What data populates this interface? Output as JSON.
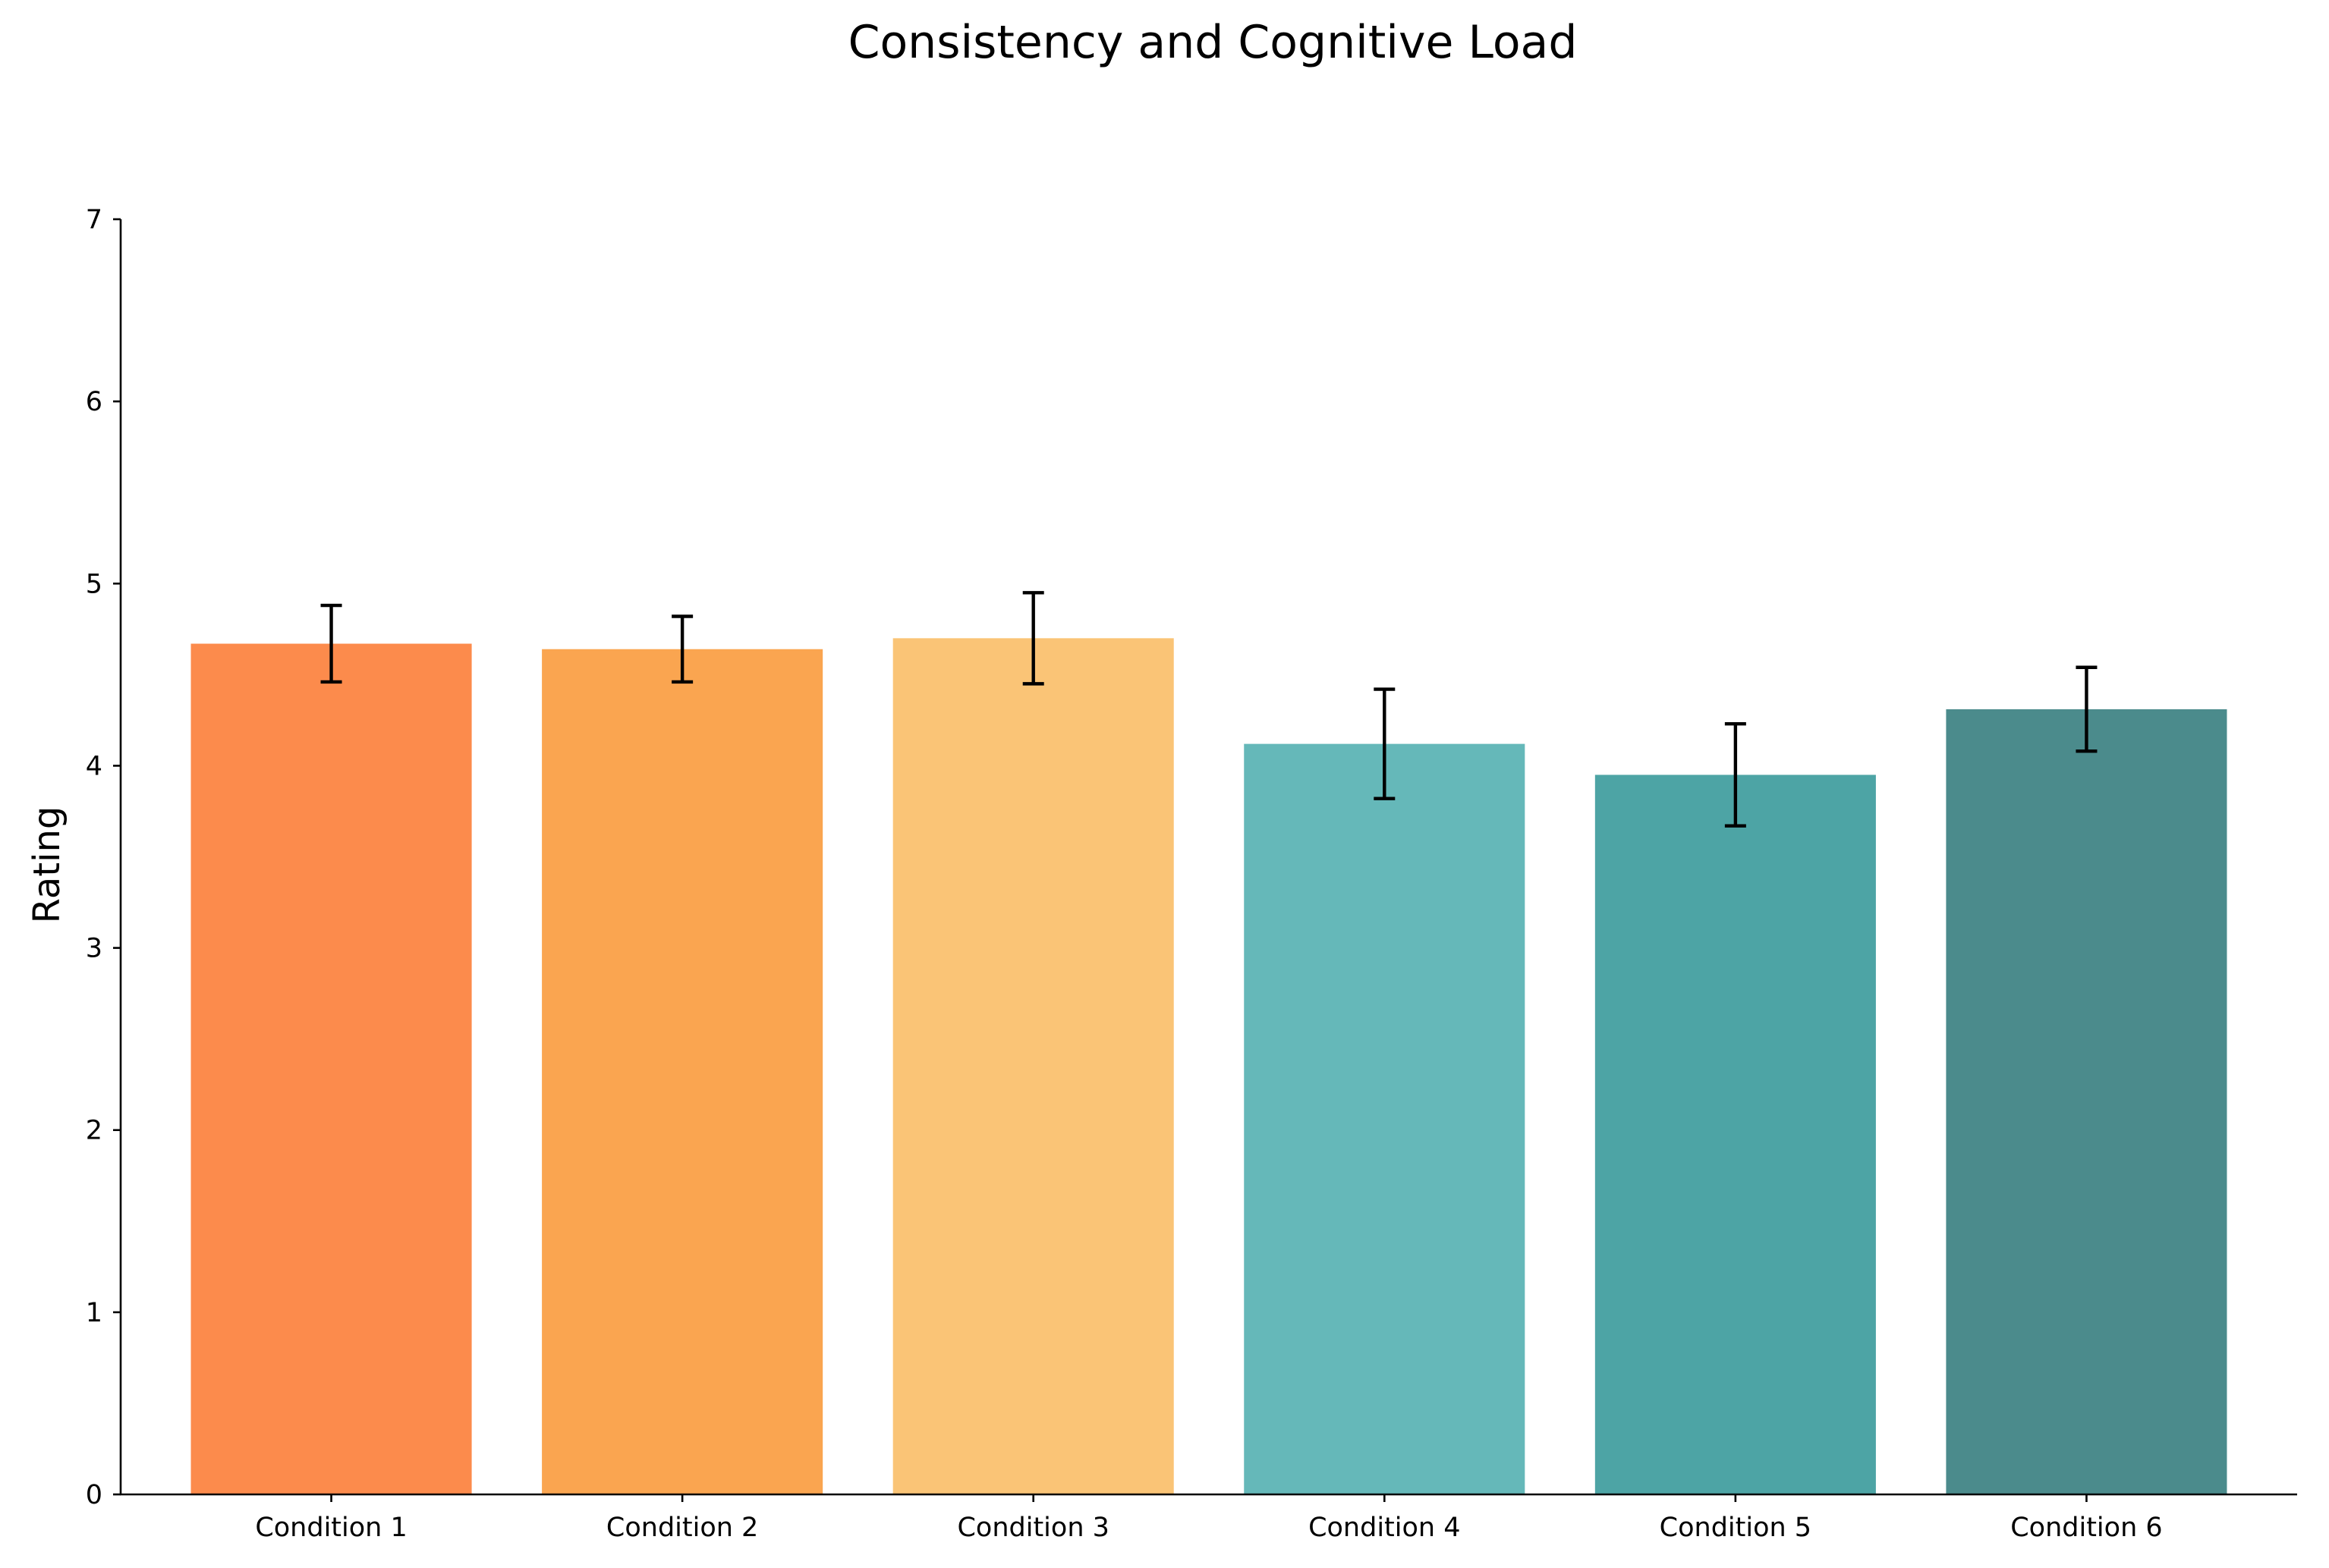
{
  "chart_data": {
    "type": "bar",
    "title": "Consistency and Cognitive Load",
    "xlabel": "",
    "ylabel": "Rating",
    "categories": [
      "Condition 1",
      "Condition 2",
      "Condition 3",
      "Condition 4",
      "Condition 5",
      "Condition 6"
    ],
    "values": [
      4.67,
      4.64,
      4.7,
      4.12,
      3.95,
      4.31
    ],
    "errors": [
      0.21,
      0.18,
      0.25,
      0.3,
      0.28,
      0.23
    ],
    "colors": [
      "#fc8b4c",
      "#faa550",
      "#fac476",
      "#65b8b9",
      "#4da4a5",
      "#4b8b8c"
    ],
    "ylim": [
      0,
      7
    ],
    "yticks": [
      "0",
      "1",
      "2",
      "3",
      "4",
      "5",
      "6",
      "7"
    ],
    "grid": false,
    "error_bars": true,
    "legend": "none"
  }
}
